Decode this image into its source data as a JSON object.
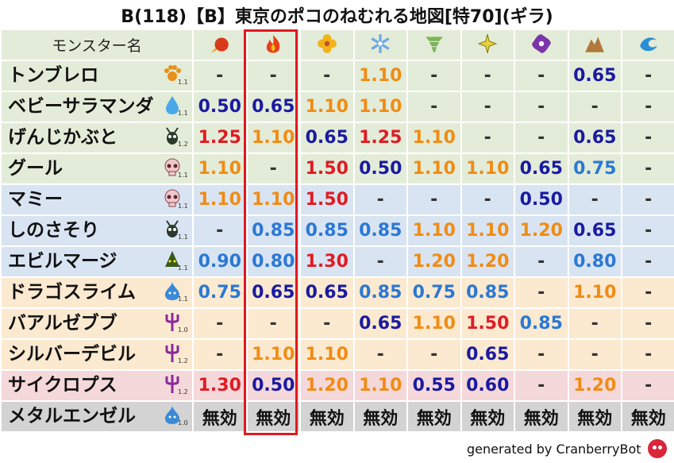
{
  "title": "B(118)【B】東京のポコのねむれる地図[特70](ギラ)",
  "header": {
    "name_label": "モンスター名",
    "elements": [
      {
        "icon": "fireball-icon",
        "color": "#d83a1c"
      },
      {
        "icon": "fire-icon",
        "color": "#e8401a"
      },
      {
        "icon": "flower-icon",
        "color": "#f2b21a"
      },
      {
        "icon": "ice-icon",
        "color": "#6fa8e6"
      },
      {
        "icon": "tornado-icon",
        "color": "#7bb55a"
      },
      {
        "icon": "lightning-icon",
        "color": "#e8d23a"
      },
      {
        "icon": "dark-icon",
        "color": "#7a35a8"
      },
      {
        "icon": "earth-icon",
        "color": "#b07a3c"
      },
      {
        "icon": "water-icon",
        "color": "#2a8fd8"
      }
    ]
  },
  "monsters": [
    {
      "name": "トンブレロ",
      "icon": "paw-icon",
      "scale": "1.1",
      "bg": "green",
      "values": [
        {
          "v": "-",
          "c": "dash"
        },
        {
          "v": "-",
          "c": "dash"
        },
        {
          "v": "-",
          "c": "dash"
        },
        {
          "v": "1.10",
          "c": "orange"
        },
        {
          "v": "-",
          "c": "dash"
        },
        {
          "v": "-",
          "c": "dash"
        },
        {
          "v": "-",
          "c": "dash"
        },
        {
          "v": "0.65",
          "c": "navy"
        },
        {
          "v": "-",
          "c": "dash"
        }
      ]
    },
    {
      "name": "ベビーサラマンダ",
      "icon": "drop-icon",
      "scale": "1.1",
      "bg": "green",
      "values": [
        {
          "v": "0.50",
          "c": "navy"
        },
        {
          "v": "0.65",
          "c": "navy"
        },
        {
          "v": "1.10",
          "c": "orange"
        },
        {
          "v": "1.10",
          "c": "orange"
        },
        {
          "v": "-",
          "c": "dash"
        },
        {
          "v": "-",
          "c": "dash"
        },
        {
          "v": "-",
          "c": "dash"
        },
        {
          "v": "-",
          "c": "dash"
        },
        {
          "v": "-",
          "c": "dash"
        }
      ]
    },
    {
      "name": "げんじかぶと",
      "icon": "bug-icon",
      "scale": "1.2",
      "bg": "green",
      "values": [
        {
          "v": "1.25",
          "c": "red"
        },
        {
          "v": "1.10",
          "c": "orange"
        },
        {
          "v": "0.65",
          "c": "navy"
        },
        {
          "v": "1.25",
          "c": "red"
        },
        {
          "v": "1.10",
          "c": "orange"
        },
        {
          "v": "-",
          "c": "dash"
        },
        {
          "v": "-",
          "c": "dash"
        },
        {
          "v": "0.65",
          "c": "navy"
        },
        {
          "v": "-",
          "c": "dash"
        }
      ]
    },
    {
      "name": "グール",
      "icon": "skull-icon",
      "scale": "1.1",
      "bg": "green",
      "values": [
        {
          "v": "1.10",
          "c": "orange"
        },
        {
          "v": "-",
          "c": "dash"
        },
        {
          "v": "1.50",
          "c": "red"
        },
        {
          "v": "0.50",
          "c": "navy"
        },
        {
          "v": "1.10",
          "c": "orange"
        },
        {
          "v": "1.10",
          "c": "orange"
        },
        {
          "v": "0.65",
          "c": "navy"
        },
        {
          "v": "0.75",
          "c": "blue"
        },
        {
          "v": "-",
          "c": "dash"
        }
      ]
    },
    {
      "name": "マミー",
      "icon": "skull-icon",
      "scale": "1.1",
      "bg": "blue",
      "values": [
        {
          "v": "1.10",
          "c": "orange"
        },
        {
          "v": "1.10",
          "c": "orange"
        },
        {
          "v": "1.50",
          "c": "red"
        },
        {
          "v": "-",
          "c": "dash"
        },
        {
          "v": "-",
          "c": "dash"
        },
        {
          "v": "-",
          "c": "dash"
        },
        {
          "v": "0.50",
          "c": "navy"
        },
        {
          "v": "-",
          "c": "dash"
        },
        {
          "v": "-",
          "c": "dash"
        }
      ]
    },
    {
      "name": "しのさそり",
      "icon": "bug-icon",
      "scale": "1.1",
      "bg": "blue",
      "values": [
        {
          "v": "-",
          "c": "dash"
        },
        {
          "v": "0.85",
          "c": "blue"
        },
        {
          "v": "0.85",
          "c": "blue"
        },
        {
          "v": "0.85",
          "c": "blue"
        },
        {
          "v": "1.10",
          "c": "orange"
        },
        {
          "v": "1.10",
          "c": "orange"
        },
        {
          "v": "1.20",
          "c": "orange"
        },
        {
          "v": "0.65",
          "c": "navy"
        },
        {
          "v": "-",
          "c": "dash"
        }
      ]
    },
    {
      "name": "エビルマージ",
      "icon": "mage-icon",
      "scale": "1.1",
      "bg": "blue",
      "values": [
        {
          "v": "0.90",
          "c": "blue"
        },
        {
          "v": "0.80",
          "c": "blue"
        },
        {
          "v": "1.30",
          "c": "red"
        },
        {
          "v": "-",
          "c": "dash"
        },
        {
          "v": "1.20",
          "c": "orange"
        },
        {
          "v": "1.20",
          "c": "orange"
        },
        {
          "v": "-",
          "c": "dash"
        },
        {
          "v": "0.80",
          "c": "blue"
        },
        {
          "v": "-",
          "c": "dash"
        }
      ]
    },
    {
      "name": "ドラゴスライム",
      "icon": "slime-icon",
      "scale": "1.1",
      "bg": "peach",
      "values": [
        {
          "v": "0.75",
          "c": "blue"
        },
        {
          "v": "0.65",
          "c": "navy"
        },
        {
          "v": "0.65",
          "c": "navy"
        },
        {
          "v": "0.85",
          "c": "blue"
        },
        {
          "v": "0.75",
          "c": "blue"
        },
        {
          "v": "0.85",
          "c": "blue"
        },
        {
          "v": "-",
          "c": "dash"
        },
        {
          "v": "1.10",
          "c": "orange"
        },
        {
          "v": "-",
          "c": "dash"
        }
      ]
    },
    {
      "name": "バアルゼブブ",
      "icon": "trident-icon",
      "scale": "1.0",
      "bg": "peach",
      "values": [
        {
          "v": "-",
          "c": "dash"
        },
        {
          "v": "-",
          "c": "dash"
        },
        {
          "v": "-",
          "c": "dash"
        },
        {
          "v": "0.65",
          "c": "navy"
        },
        {
          "v": "1.10",
          "c": "orange"
        },
        {
          "v": "1.50",
          "c": "red"
        },
        {
          "v": "0.85",
          "c": "blue"
        },
        {
          "v": "-",
          "c": "dash"
        },
        {
          "v": "-",
          "c": "dash"
        }
      ]
    },
    {
      "name": "シルバーデビル",
      "icon": "trident-icon",
      "scale": "1.2",
      "bg": "peach",
      "values": [
        {
          "v": "-",
          "c": "dash"
        },
        {
          "v": "1.10",
          "c": "orange"
        },
        {
          "v": "1.10",
          "c": "orange"
        },
        {
          "v": "-",
          "c": "dash"
        },
        {
          "v": "-",
          "c": "dash"
        },
        {
          "v": "0.65",
          "c": "navy"
        },
        {
          "v": "-",
          "c": "dash"
        },
        {
          "v": "-",
          "c": "dash"
        },
        {
          "v": "-",
          "c": "dash"
        }
      ]
    },
    {
      "name": "サイクロプス",
      "icon": "trident-icon",
      "scale": "1.2",
      "bg": "pink",
      "values": [
        {
          "v": "1.30",
          "c": "red"
        },
        {
          "v": "0.50",
          "c": "navy"
        },
        {
          "v": "1.20",
          "c": "orange"
        },
        {
          "v": "1.10",
          "c": "orange"
        },
        {
          "v": "0.55",
          "c": "navy"
        },
        {
          "v": "0.60",
          "c": "navy"
        },
        {
          "v": "-",
          "c": "dash"
        },
        {
          "v": "1.20",
          "c": "orange"
        },
        {
          "v": "-",
          "c": "dash"
        }
      ]
    },
    {
      "name": "メタルエンゼル",
      "icon": "slime-icon",
      "scale": "1.0",
      "bg": "gray",
      "values": [
        {
          "v": "無効",
          "c": "none"
        },
        {
          "v": "無効",
          "c": "none"
        },
        {
          "v": "無効",
          "c": "none"
        },
        {
          "v": "無効",
          "c": "none"
        },
        {
          "v": "無効",
          "c": "none"
        },
        {
          "v": "無効",
          "c": "none"
        },
        {
          "v": "無効",
          "c": "none"
        },
        {
          "v": "無効",
          "c": "none"
        },
        {
          "v": "無効",
          "c": "none"
        }
      ]
    }
  ],
  "footer": {
    "text": "generated by CranberryBot"
  }
}
